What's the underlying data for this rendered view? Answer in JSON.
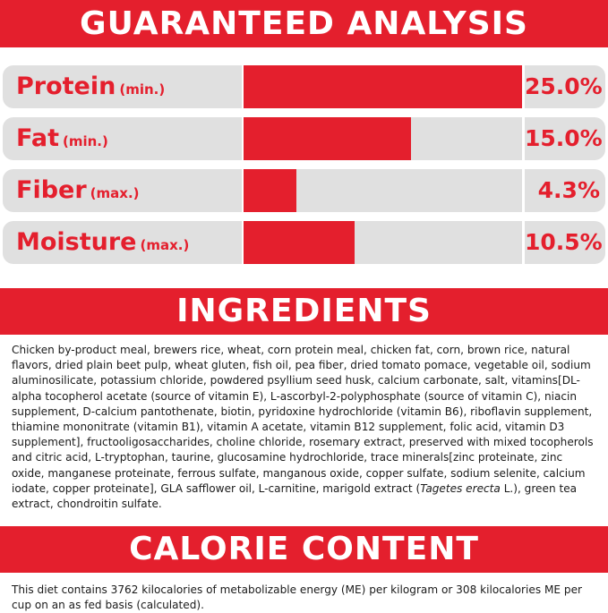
{
  "sections": {
    "analysis_title": "GUARANTEED ANALYSIS",
    "ingredients_title": "INGREDIENTS",
    "calorie_title": "CALORIE CONTENT"
  },
  "analysis": [
    {
      "name": "Protein",
      "qualifier": "(min.)",
      "value_text": "25.0%",
      "fraction": 1.0
    },
    {
      "name": "Fat",
      "qualifier": "(min.)",
      "value_text": "15.0%",
      "fraction": 0.6
    },
    {
      "name": "Fiber",
      "qualifier": "(max.)",
      "value_text": "4.3%",
      "fraction": 0.19
    },
    {
      "name": "Moisture",
      "qualifier": "(max.)",
      "value_text": "10.5%",
      "fraction": 0.4
    }
  ],
  "ingredients": {
    "text_before_italic": "Chicken by-product meal, brewers rice, wheat, corn protein meal, chicken fat, corn, brown rice, natural flavors, dried plain beet pulp, wheat gluten, fish oil, pea fiber, dried tomato pomace, vegetable oil, sodium aluminosilicate, potassium chloride, powdered psyllium seed husk, calcium carbonate, salt, vitamins[DL-alpha tocopherol acetate (source of vitamin E), L-ascorbyl-2-polyphosphate (source of vitamin C), niacin supplement, D-calcium pantothenate, biotin, pyridoxine hydrochloride (vitamin B6), riboflavin supplement, thiamine mononitrate (vitamin B1), vitamin A acetate, vitamin B12 supplement, folic acid, vitamin D3 supplement], fructooligosaccharides, choline chloride, rosemary extract, preserved with mixed tocopherols and citric acid, L-tryptophan, taurine, glucosamine hydrochloride, trace minerals[zinc proteinate, zinc oxide, manganese proteinate, ferrous sulfate, manganous oxide, copper sulfate, sodium selenite, calcium iodate, copper proteinate], GLA safflower oil, L-carnitine, marigold extract (",
    "italic": "Tagetes erecta",
    "text_after_italic": " L.), green tea extract, chondroitin sulfate."
  },
  "calorie": {
    "text": "This diet contains 3762 kilocalories of metabolizable energy (ME) per kilogram or 308 kilocalories ME per cup on an as fed basis (calculated)."
  },
  "colors": {
    "accent": "#e41f2d",
    "panel": "#e0e0e0"
  }
}
